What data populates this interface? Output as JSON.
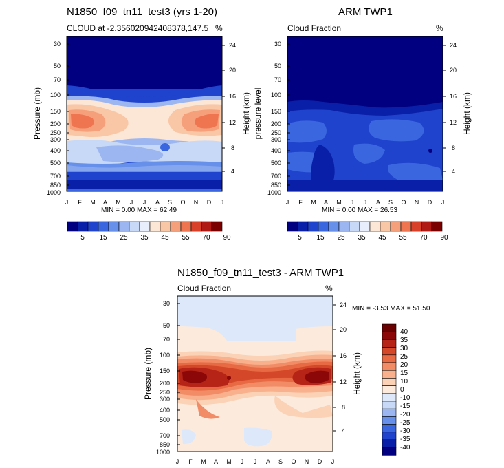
{
  "colors": {
    "blue_red": [
      "#000080",
      "#0a1fa8",
      "#1f43cc",
      "#3a67e0",
      "#6690ea",
      "#9bb6f0",
      "#c7d9f7",
      "#e8eefb",
      "#fce7d6",
      "#f9c6a6",
      "#f5a07a",
      "#ef7450",
      "#d9402a",
      "#b01a14",
      "#7a0000"
    ],
    "diff": [
      "#000080",
      "#0a1fa8",
      "#1f43cc",
      "#3a67e0",
      "#6690ea",
      "#9bb6f0",
      "#c7d9f7",
      "#dde8fb",
      "#fcebdd",
      "#fbd2b6",
      "#f8b08d",
      "#f28c66",
      "#e86a44",
      "#d44728",
      "#b52417",
      "#8c0707",
      "#6a0000"
    ]
  },
  "panel_model": {
    "title": "N1850_f09_tn11_test3 (yrs 1-20)",
    "left_string": "CLOUD at -2.356020942408378,147.5",
    "right_string": "%",
    "ylabel_left": "Pressure (mb)",
    "ylabel_right": "Height (km)",
    "minmax": "MIN =   0.00 MAX =  62.49"
  },
  "panel_obs": {
    "title": "ARM TWP1",
    "left_string": "Cloud Fraction",
    "right_string": "%",
    "ylabel_left": "pressure level",
    "ylabel_right": "Height (km)",
    "minmax": "MIN =   0.00 MAX =  26.53"
  },
  "panel_diff": {
    "title": "N1850_f09_tn11_test3 - ARM TWP1",
    "left_string": "Cloud Fraction",
    "right_string": "%",
    "ylabel_left": "Pressure (mb)",
    "ylabel_right": "Height (km)",
    "minmax": "MIN =  -3.53 MAX =  51.50"
  },
  "colorbar_top": {
    "labels": [
      "5",
      "15",
      "25",
      "35",
      "45",
      "55",
      "70",
      "90"
    ]
  },
  "colorbar_diff": {
    "labels": [
      "40",
      "35",
      "30",
      "25",
      "20",
      "15",
      "10",
      "0",
      "-10",
      "-15",
      "-20",
      "-25",
      "-30",
      "-35",
      "-40"
    ]
  },
  "chart_data": [
    {
      "type": "heatmap",
      "title": "N1850_f09_tn11_test3 (yrs 1-20)",
      "subtitle": "CLOUD at -2.356020942408378,147.5",
      "units": "%",
      "x": [
        "J",
        "F",
        "M",
        "A",
        "M",
        "J",
        "J",
        "A",
        "S",
        "O",
        "N",
        "D",
        "J"
      ],
      "y_pressure_ticks": [
        30,
        50,
        70,
        100,
        150,
        200,
        250,
        300,
        400,
        500,
        700,
        850,
        1000
      ],
      "y_height_ticks": [
        24,
        20,
        16,
        12,
        8,
        4
      ],
      "xlabel": "",
      "ylabel": "Pressure (mb)",
      "y2label": "Height (km)",
      "min": 0.0,
      "max": 62.49,
      "levels": [
        5,
        10,
        15,
        20,
        25,
        30,
        35,
        40,
        45,
        50,
        55,
        60,
        70,
        80,
        90
      ]
    },
    {
      "type": "heatmap",
      "title": "ARM TWP1",
      "subtitle": "Cloud Fraction",
      "units": "%",
      "x": [
        "J",
        "F",
        "M",
        "A",
        "M",
        "J",
        "J",
        "A",
        "S",
        "O",
        "N",
        "D",
        "J"
      ],
      "y_pressure_ticks": [
        30,
        50,
        70,
        100,
        150,
        200,
        250,
        300,
        400,
        500,
        700,
        850,
        1000
      ],
      "y_height_ticks": [
        24,
        20,
        16,
        12,
        8,
        4
      ],
      "xlabel": "",
      "ylabel": "pressure level",
      "y2label": "Height (km)",
      "min": 0.0,
      "max": 26.53,
      "levels": [
        5,
        10,
        15,
        20,
        25,
        30,
        35,
        40,
        45,
        50,
        55,
        60,
        70,
        80,
        90
      ]
    },
    {
      "type": "heatmap",
      "title": "N1850_f09_tn11_test3 - ARM TWP1",
      "subtitle": "Cloud Fraction",
      "units": "%",
      "x": [
        "J",
        "F",
        "M",
        "A",
        "M",
        "J",
        "J",
        "A",
        "S",
        "O",
        "N",
        "D",
        "J"
      ],
      "y_pressure_ticks": [
        30,
        50,
        70,
        100,
        150,
        200,
        250,
        300,
        400,
        500,
        700,
        850,
        1000
      ],
      "y_height_ticks": [
        24,
        20,
        16,
        12,
        8,
        4
      ],
      "xlabel": "",
      "ylabel": "Pressure (mb)",
      "y2label": "Height (km)",
      "min": -3.53,
      "max": 51.5,
      "levels": [
        -40,
        -35,
        -30,
        -25,
        -20,
        -15,
        -10,
        0,
        10,
        15,
        20,
        25,
        30,
        35,
        40
      ]
    }
  ]
}
